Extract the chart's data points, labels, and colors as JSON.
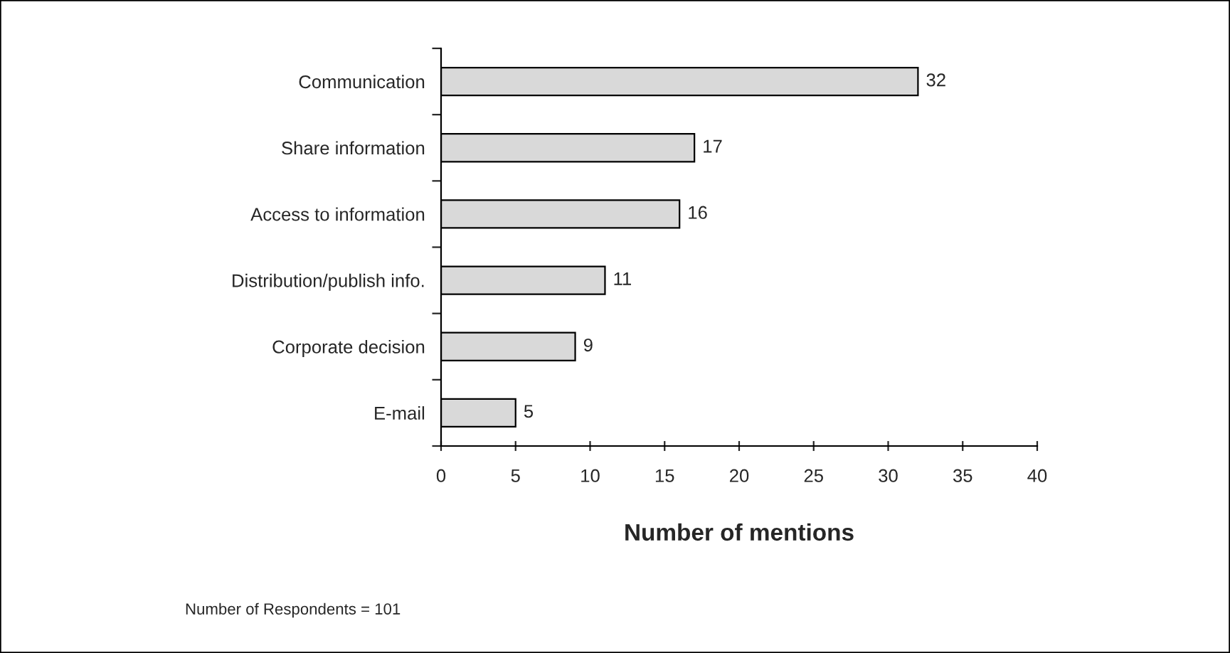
{
  "chart_data": {
    "type": "bar",
    "orientation": "horizontal",
    "xlabel": "Number of mentions",
    "categories": [
      "Communication",
      "Share information",
      "Access to information",
      "Distribution/publish info.",
      "Corporate decision",
      "E-mail"
    ],
    "values": [
      32,
      17,
      16,
      11,
      9,
      5
    ],
    "color": "#d9d9d9",
    "xlim": [
      0,
      40
    ],
    "xticks": [
      0,
      5,
      10,
      15,
      20,
      25,
      30,
      35,
      40
    ],
    "grid": false,
    "data_labels": true,
    "annotations": [
      "Number of Respondents = 101"
    ]
  }
}
